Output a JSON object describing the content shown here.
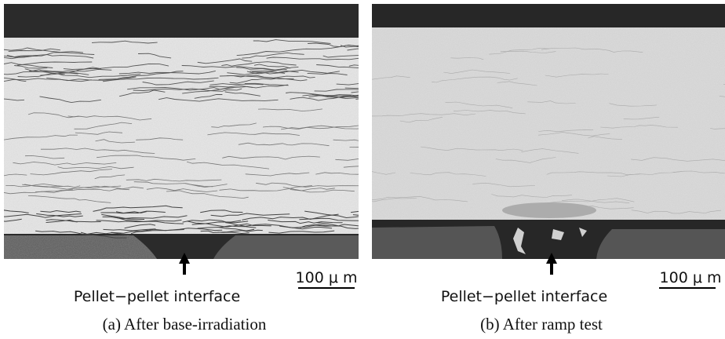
{
  "panels": [
    {
      "interface_label": "Pellet−pellet interface",
      "scale_label": "100 μ m",
      "caption": "(a)   After base-irradiation"
    },
    {
      "interface_label": "Pellet−pellet interface",
      "scale_label": "100 μ m",
      "caption": "(b)   After ramp test"
    }
  ]
}
